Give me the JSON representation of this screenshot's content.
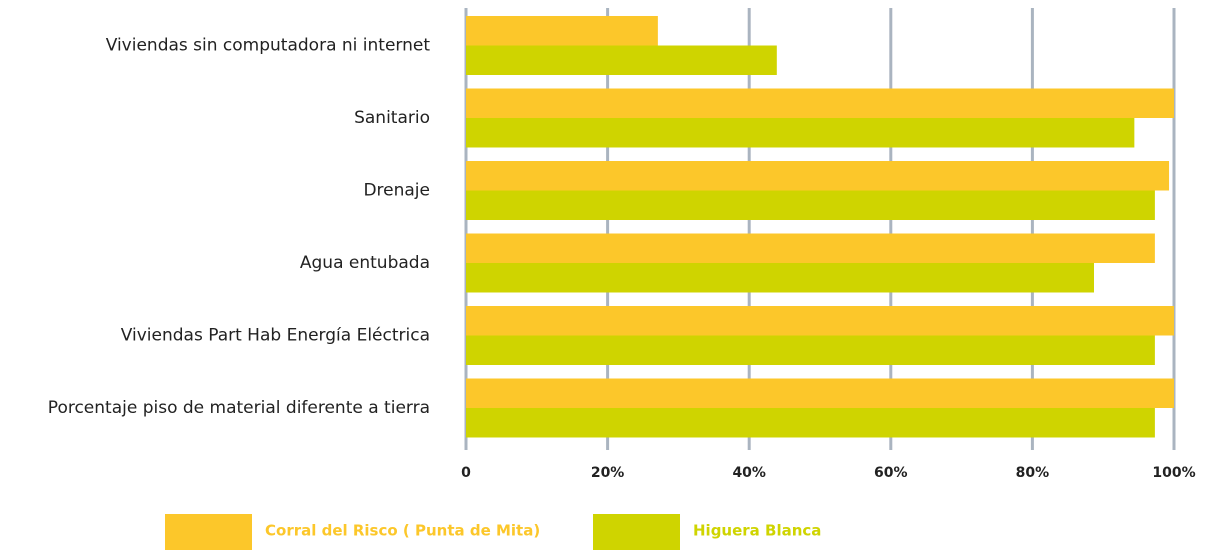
{
  "chart_data": {
    "type": "hbar",
    "categories": [
      "Viviendas sin computadora ni internet",
      "Sanitario",
      "Drenaje",
      "Agua entubada",
      "Viviendas Part Hab Energía Eléctrica",
      "Porcentaje piso de material diferente a tierra"
    ],
    "series": [
      {
        "name": "Corral del Risco ( Punta de Mita)",
        "color": "#fcc72a",
        "values": [
          27.1,
          100,
          99.3,
          97.3,
          100,
          100
        ]
      },
      {
        "name": "Higuera Blanca",
        "color": "#cfd400",
        "values": [
          43.9,
          94.4,
          97.3,
          88.7,
          97.3,
          97.3
        ]
      }
    ],
    "xlim": [
      0,
      100
    ],
    "xticks": [
      0,
      {
        "value": 20,
        "label": "20%"
      },
      {
        "value": 40,
        "label": "40%"
      },
      {
        "value": 60,
        "label": "60%"
      },
      {
        "value": 80,
        "label": "80%"
      },
      {
        "value": 100,
        "label": "100%"
      }
    ],
    "grid": true,
    "legend": "bottom"
  }
}
